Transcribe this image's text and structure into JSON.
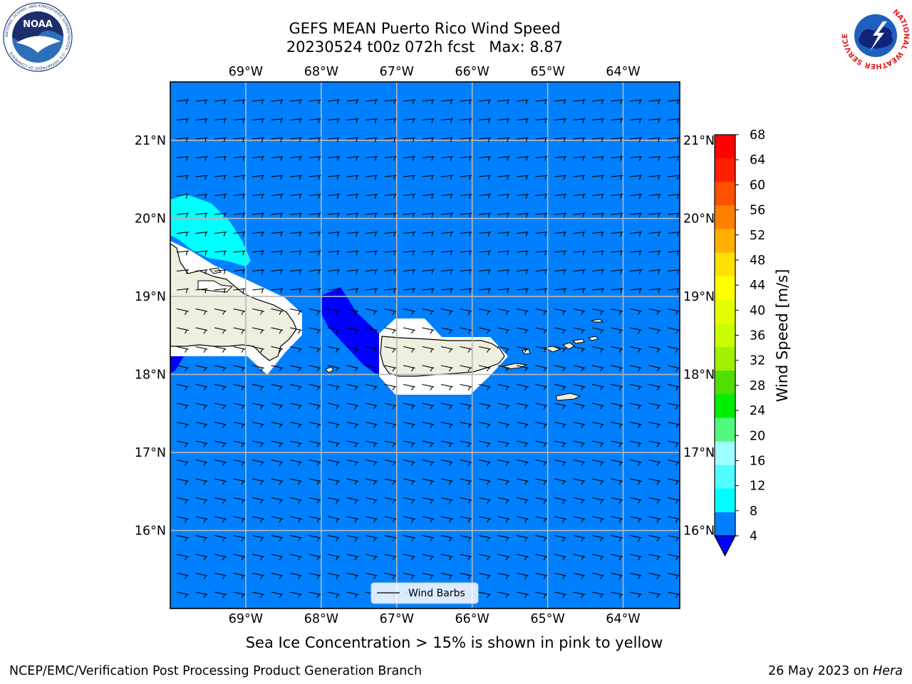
{
  "title_line1": "GEFS MEAN Puerto Rico Wind Speed",
  "title_line2": "20230524 t00z 072h fcst   Max: 8.87",
  "map": {
    "lon_range": [
      -70.0,
      -63.25
    ],
    "lat_range": [
      15.0,
      21.75
    ],
    "lon_ticks": [
      -69,
      -68,
      -67,
      -66,
      -65,
      -64
    ],
    "lon_tick_labels": [
      "69°W",
      "68°W",
      "67°W",
      "66°W",
      "65°W",
      "64°W"
    ],
    "lat_ticks": [
      21,
      20,
      19,
      18,
      17,
      16
    ],
    "lat_tick_labels": [
      "21°N",
      "20°N",
      "19°N",
      "18°N",
      "17°N",
      "16°N"
    ],
    "grid": true,
    "background_level_color": "#0080ff",
    "legend": {
      "label": "Wind Barbs",
      "placement": "bottom-center"
    },
    "landmasses": [
      "Hispaniola",
      "Puerto Rico",
      "Vieques",
      "Culebra",
      "St. Thomas",
      "St. John",
      "St. Croix",
      "Mona"
    ]
  },
  "colorbar": {
    "label": "Wind Speed [m/s]",
    "ticks": [
      68,
      64,
      60,
      56,
      52,
      48,
      44,
      40,
      36,
      32,
      28,
      24,
      20,
      16,
      12,
      8,
      4
    ],
    "colors_top_to_bottom": [
      "#ff0000",
      "#ff2000",
      "#ff5000",
      "#ff8000",
      "#ffb000",
      "#ffe000",
      "#ffff00",
      "#e6ff00",
      "#c8ff00",
      "#a0f000",
      "#50dd00",
      "#00ee00",
      "#50f880",
      "#a0ffff",
      "#50ffff",
      "#00ffff",
      "#0080ff"
    ],
    "under_color": "#0000ff"
  },
  "footnote": "Sea Ice Concentration > 15% is shown in pink to yellow",
  "credit": "NCEP/EMC/Verification Post Processing Product Generation Branch",
  "date_prefix": "26 May 2023 on ",
  "date_machine": "Hera",
  "logos": {
    "left": {
      "name": "noaa-logo",
      "text": "NOAA",
      "ring": "NATIONAL OCEANIC AND ATMOSPHERIC ADMINISTRATION · U.S. DEPARTMENT OF COMMERCE"
    },
    "right": {
      "name": "nws-logo",
      "ring": "NATIONAL WEATHER SERVICE"
    }
  }
}
